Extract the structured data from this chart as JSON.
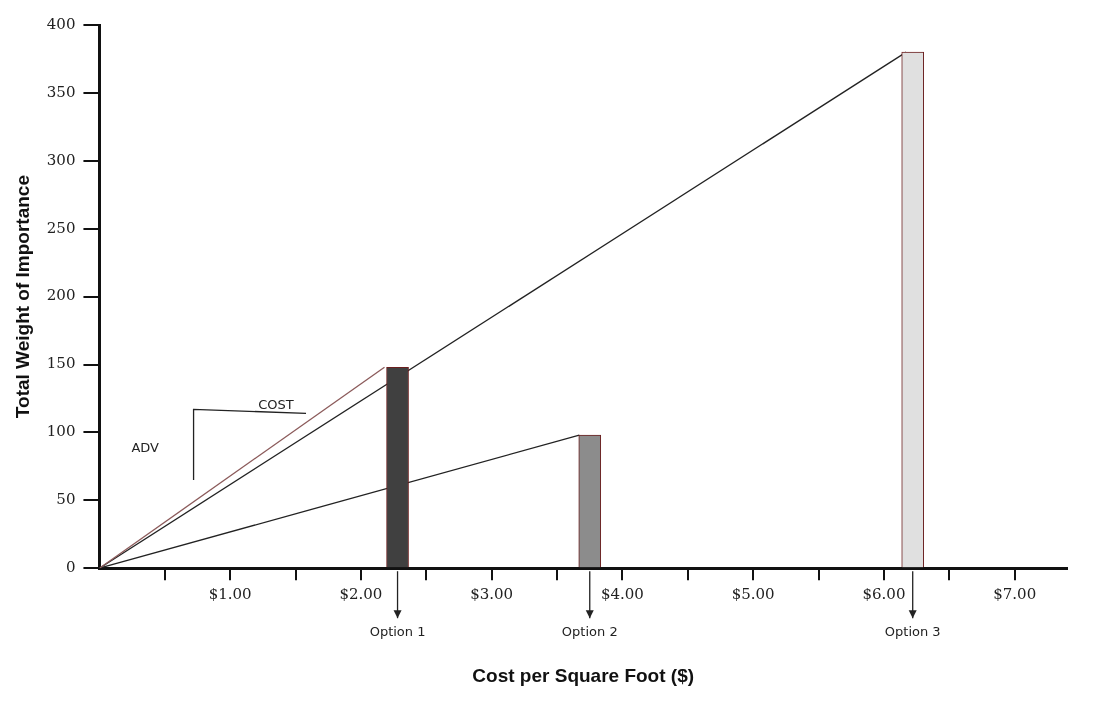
{
  "chart_data": {
    "type": "bar",
    "xlabel": "Cost per Square Foot ($)",
    "ylabel": "Total Weight of Importance",
    "xlim": [
      0,
      7.4
    ],
    "ylim": [
      0,
      400
    ],
    "xticks": [
      {
        "value": 0.5,
        "label": null
      },
      {
        "value": 1,
        "label": "$1.00"
      },
      {
        "value": 1.5,
        "label": null
      },
      {
        "value": 2,
        "label": "$2.00"
      },
      {
        "value": 2.5,
        "label": null
      },
      {
        "value": 3,
        "label": "$3.00"
      },
      {
        "value": 3.5,
        "label": null
      },
      {
        "value": 4,
        "label": "$4.00"
      },
      {
        "value": 4.5,
        "label": null
      },
      {
        "value": 5,
        "label": "$5.00"
      },
      {
        "value": 5.5,
        "label": null
      },
      {
        "value": 6,
        "label": "$6.00"
      },
      {
        "value": 6.5,
        "label": null
      },
      {
        "value": 7,
        "label": "$7.00"
      }
    ],
    "yticks": [
      0,
      50,
      100,
      150,
      200,
      250,
      300,
      350,
      400
    ],
    "grid": false,
    "legend": false,
    "series": [
      {
        "x": [
          2.28,
          3.75,
          6.22
        ],
        "values": [
          148,
          98,
          380
        ],
        "colors": [
          "#404040",
          "#8c8c8c",
          "#e0e0e0"
        ]
      },
      {
        "type": "line",
        "x": [
          0,
          2.18
        ],
        "values": [
          0,
          148
        ],
        "color": "#8b5a5a"
      },
      {
        "type": "line",
        "x": [
          0,
          3.67
        ],
        "values": [
          0,
          98
        ],
        "color": "#222222"
      },
      {
        "type": "line",
        "x": [
          0,
          6.17
        ],
        "values": [
          0,
          380
        ],
        "color": "#222222"
      }
    ],
    "annotations": [
      "COST",
      "ADV",
      {
        "text": "Option 1",
        "x": 2.28,
        "y": 0
      },
      {
        "text": "Option 2",
        "x": 3.75,
        "y": 0
      },
      {
        "text": "Option 3",
        "x": 6.22,
        "y": 0
      }
    ]
  }
}
